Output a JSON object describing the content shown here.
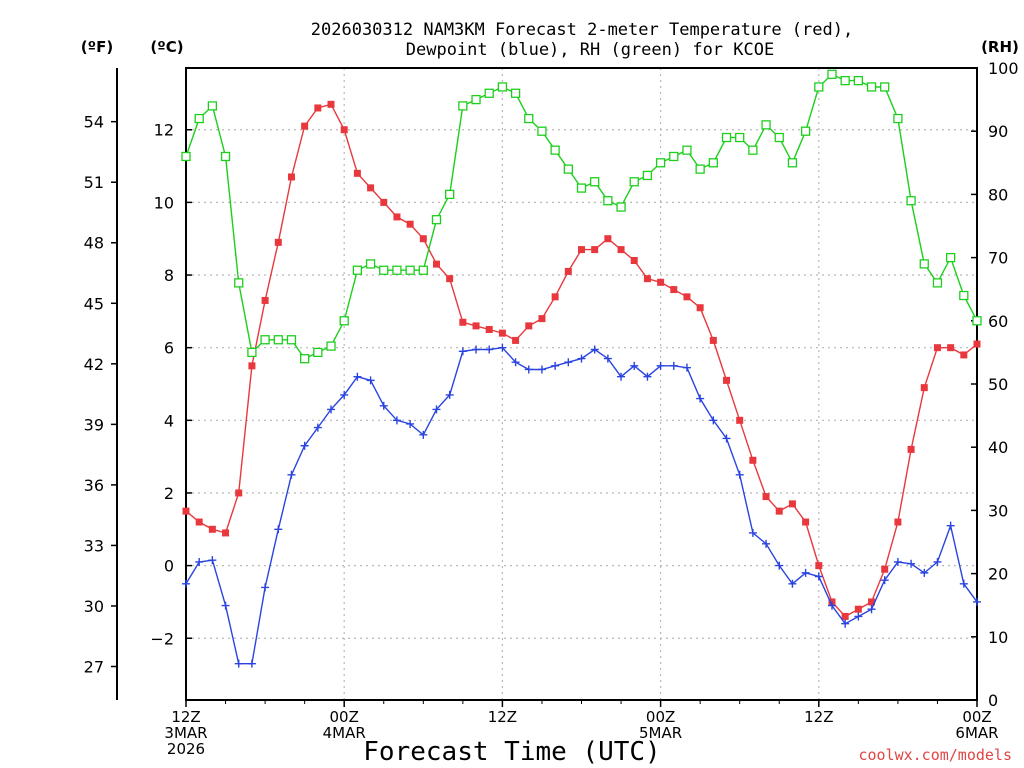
{
  "chart_data": {
    "type": "line",
    "title_line1": "2026030312 NAM3KM Forecast 2-meter Temperature (red),",
    "title_line2": "Dewpoint (blue), RH (green) for KCOE",
    "xlabel": "Forecast Time (UTC)",
    "credit": "coolwx.com/models",
    "unit_f": "(ºF)",
    "unit_c": "(ºC)",
    "unit_rh": "(RH)",
    "x_hours_range": [
      0,
      60
    ],
    "c_range": [
      -3.7,
      13.7
    ],
    "rh_range": [
      0,
      100
    ],
    "c_ticks": [
      -2,
      0,
      2,
      4,
      6,
      8,
      10,
      12
    ],
    "f_ticks": [
      27,
      30,
      33,
      36,
      39,
      42,
      45,
      48,
      51,
      54
    ],
    "rh_ticks": [
      0,
      10,
      20,
      30,
      40,
      50,
      60,
      70,
      80,
      90,
      100
    ],
    "x_ticks": [
      {
        "hour": 0,
        "lines": [
          "12Z",
          "3MAR",
          "2026"
        ]
      },
      {
        "hour": 12,
        "lines": [
          "00Z",
          "4MAR"
        ]
      },
      {
        "hour": 24,
        "lines": [
          "12Z"
        ]
      },
      {
        "hour": 36,
        "lines": [
          "00Z",
          "5MAR"
        ]
      },
      {
        "hour": 48,
        "lines": [
          "12Z"
        ]
      },
      {
        "hour": 60,
        "lines": [
          "00Z",
          "6MAR"
        ]
      }
    ],
    "series": [
      {
        "name": "2-meter Temperature",
        "color": "#e8383d",
        "marker": "filled-square",
        "units": "C",
        "values": [
          1.5,
          1.2,
          1.0,
          0.9,
          2.0,
          5.5,
          7.3,
          8.9,
          10.7,
          12.1,
          12.6,
          12.7,
          12.0,
          10.8,
          10.4,
          10.0,
          9.6,
          9.4,
          9.0,
          8.3,
          7.9,
          6.7,
          6.6,
          6.5,
          6.4,
          6.2,
          6.6,
          6.8,
          7.4,
          8.1,
          8.7,
          8.7,
          9.0,
          8.7,
          8.4,
          7.9,
          7.8,
          7.6,
          7.4,
          7.1,
          6.2,
          5.1,
          4.0,
          2.9,
          1.9,
          1.5,
          1.7,
          1.2,
          0.0,
          -1.0,
          -1.4,
          -1.2,
          -1.0,
          -0.1,
          1.2,
          3.2,
          4.9,
          6.0,
          6.0,
          5.8,
          6.1
        ]
      },
      {
        "name": "Dewpoint",
        "color": "#2a44e0",
        "marker": "plus",
        "units": "C",
        "values": [
          -0.5,
          0.1,
          0.15,
          -1.1,
          -2.7,
          -2.7,
          -0.6,
          1.0,
          2.5,
          3.3,
          3.8,
          4.3,
          4.7,
          5.2,
          5.1,
          4.4,
          4.0,
          3.9,
          3.6,
          4.3,
          4.7,
          5.9,
          5.95,
          5.95,
          6.0,
          5.6,
          5.4,
          5.4,
          5.5,
          5.6,
          5.7,
          5.95,
          5.7,
          5.2,
          5.5,
          5.2,
          5.5,
          5.5,
          5.45,
          4.6,
          4.0,
          3.5,
          2.5,
          0.9,
          0.6,
          0.0,
          -0.5,
          -0.2,
          -0.3,
          -1.1,
          -1.6,
          -1.4,
          -1.2,
          -0.4,
          0.1,
          0.05,
          -0.2,
          0.1,
          1.1,
          -0.5,
          -1.0
        ]
      },
      {
        "name": "RH",
        "color": "#1dcf1d",
        "marker": "open-square",
        "units": "%",
        "values": [
          86,
          92,
          94,
          86,
          66,
          55,
          57,
          57,
          57,
          54,
          55,
          56,
          60,
          68,
          69,
          68,
          68,
          68,
          68,
          76,
          80,
          94,
          95,
          96,
          97,
          96,
          92,
          90,
          87,
          84,
          81,
          82,
          79,
          78,
          82,
          83,
          85,
          86,
          87,
          84,
          85,
          89,
          89,
          87,
          91,
          89,
          85,
          90,
          97,
          99,
          98,
          98,
          97,
          97,
          92,
          79,
          69,
          66,
          70,
          64,
          60
        ]
      }
    ]
  }
}
